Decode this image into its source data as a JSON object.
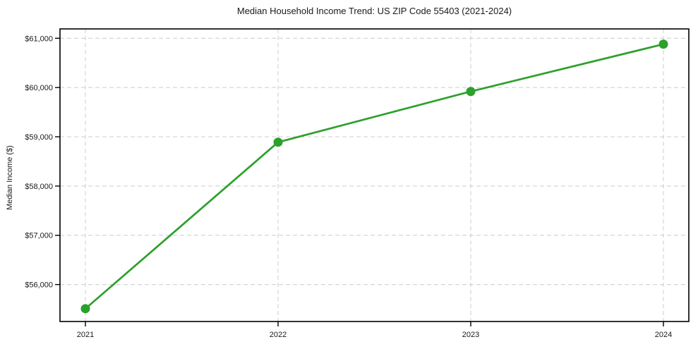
{
  "chart_data": {
    "type": "line",
    "title": "Median Household Income Trend: US ZIP Code 55403 (2021-2024)",
    "xlabel": "",
    "ylabel": "Median Income ($)",
    "categories": [
      "2021",
      "2022",
      "2023",
      "2024"
    ],
    "series": [
      {
        "name": "median-household-income",
        "values": [
          55510,
          58890,
          59920,
          60880
        ],
        "color": "#2ca02c",
        "marker": "circle",
        "marker_radius": 6.5,
        "line_width": 2.7
      }
    ],
    "ylim": [
      55250,
      61190
    ],
    "yticks": {
      "values": [
        56000,
        57000,
        58000,
        59000,
        60000,
        61000
      ],
      "labels": [
        "$56,000",
        "$57,000",
        "$58,000",
        "$59,000",
        "$60,000",
        "$61,000"
      ]
    },
    "xticks": {
      "labels": [
        "2021",
        "2022",
        "2023",
        "2024"
      ]
    },
    "grid": {
      "show": true,
      "style": "dashed",
      "color": "#cccccc",
      "horizontal": true,
      "vertical": true
    },
    "legend": {
      "show": false
    },
    "frame_color": "#000000",
    "tick_color": "#000000",
    "text_color": "#1a1a1a",
    "background": "#ffffff"
  }
}
